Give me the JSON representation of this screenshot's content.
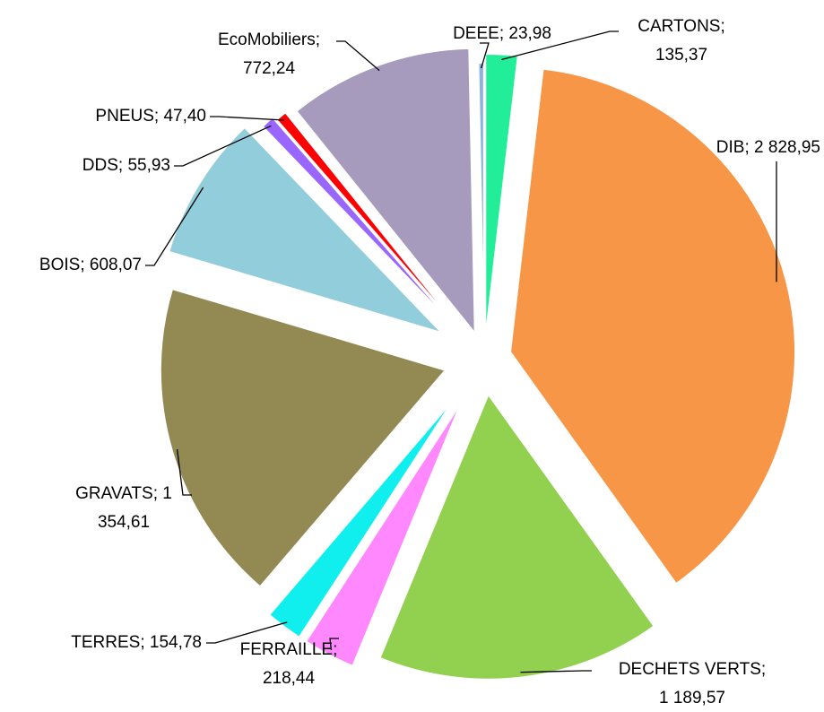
{
  "chart_data": {
    "type": "pie",
    "values": [
      135.37,
      2828.95,
      1189.57,
      218.44,
      154.78,
      1354.61,
      608.07,
      55.93,
      47.4,
      772.24,
      23.98
    ],
    "value_labels": [
      "CARTONS;\n135,37",
      "DIB; 2 828,95",
      "DECHETS VERTS;\n1 189,57",
      "FERRAILLE;\n218,44",
      "TERRES; 154,78",
      "GRAVATS; 1\n354,61",
      "BOIS; 608,07",
      "DDS; 55,93",
      "PNEUS; 47,40",
      "EcoMobiliers;\n772,24",
      "DEEE; 23,98"
    ],
    "colors": [
      "#22ee99",
      "#f79646",
      "#92d050",
      "#ff88ff",
      "#11eeee",
      "#938953",
      "#92cddc",
      "#9966ff",
      "#ff0000",
      "#a69bbd",
      "#8db3e2"
    ]
  }
}
